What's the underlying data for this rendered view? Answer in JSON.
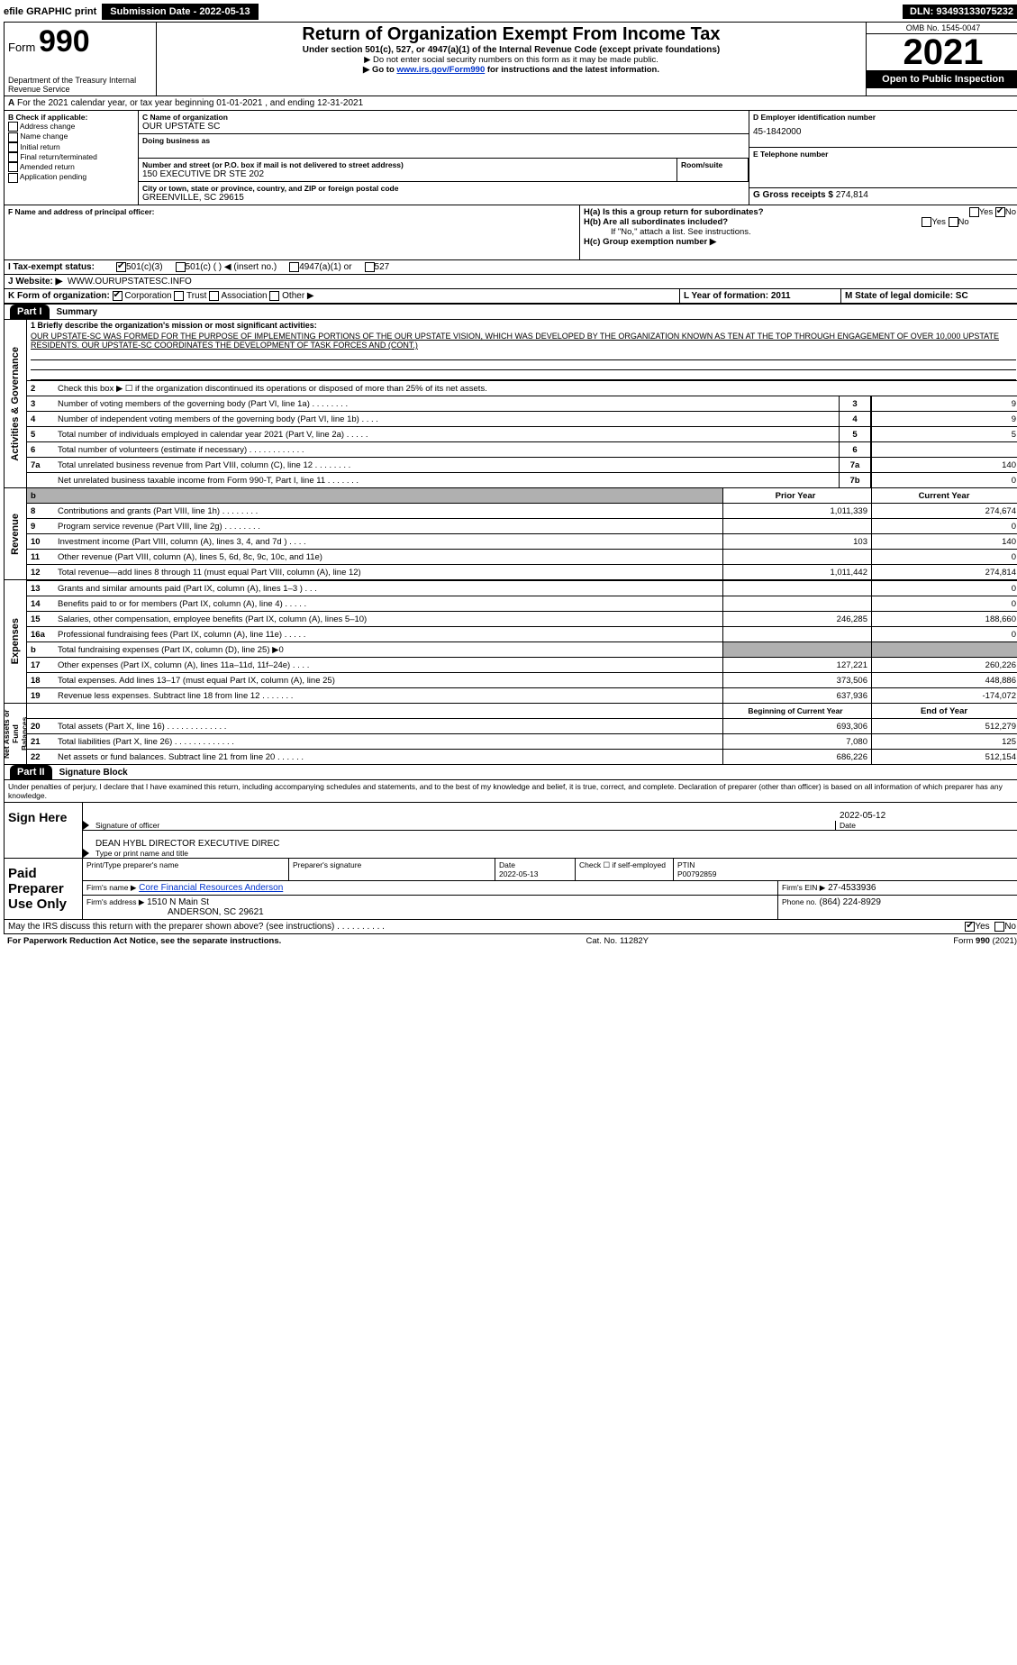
{
  "topbar": {
    "efile": "efile GRAPHIC print",
    "submission": "Submission Date - 2022-05-13",
    "dln": "DLN: 93493133075232"
  },
  "header": {
    "form_prefix": "Form",
    "form_no": "990",
    "dept": "Department of the Treasury Internal Revenue Service",
    "title": "Return of Organization Exempt From Income Tax",
    "subtitle": "Under section 501(c), 527, or 4947(a)(1) of the Internal Revenue Code (except private foundations)",
    "note1": "▶ Do not enter social security numbers on this form as it may be made public.",
    "note2_pre": "▶ Go to ",
    "note2_link": "www.irs.gov/Form990",
    "note2_post": " for instructions and the latest information.",
    "omb": "OMB No. 1545-0047",
    "year": "2021",
    "open": "Open to Public Inspection"
  },
  "A": {
    "text": "For the 2021 calendar year, or tax year beginning 01-01-2021    , and ending 12-31-2021"
  },
  "B": {
    "label": "B Check if applicable:",
    "items": [
      "Address change",
      "Name change",
      "Initial return",
      "Final return/terminated",
      "Amended return",
      "Application pending"
    ]
  },
  "C": {
    "name_label": "C Name of organization",
    "name": "OUR UPSTATE SC",
    "dba_label": "Doing business as",
    "addr_label": "Number and street (or P.O. box if mail is not delivered to street address)",
    "room_label": "Room/suite",
    "addr": "150 EXECUTIVE DR STE 202",
    "city_label": "City or town, state or province, country, and ZIP or foreign postal code",
    "city": "GREENVILLE, SC  29615"
  },
  "D": {
    "label": "D Employer identification number",
    "value": "45-1842000"
  },
  "E": {
    "label": "E Telephone number",
    "value": ""
  },
  "G": {
    "label": "G Gross receipts $",
    "value": "274,814"
  },
  "F": {
    "label": "F  Name and address of principal officer:"
  },
  "H": {
    "a": "H(a)  Is this a group return for subordinates?",
    "b": "H(b)  Are all subordinates included?",
    "b_note": "If \"No,\" attach a list. See instructions.",
    "c": "H(c)  Group exemption number ▶",
    "yes": "Yes",
    "no": "No"
  },
  "I": {
    "label": "I   Tax-exempt status:",
    "opts": [
      "501(c)(3)",
      "501(c) (  ) ◀ (insert no.)",
      "4947(a)(1) or",
      "527"
    ]
  },
  "J": {
    "label": "J   Website: ▶",
    "value": "WWW.OURUPSTATESC.INFO"
  },
  "K": {
    "label": "K Form of organization:",
    "opts": [
      "Corporation",
      "Trust",
      "Association",
      "Other ▶"
    ]
  },
  "L": {
    "label": "L Year of formation: 2011"
  },
  "M": {
    "label": "M State of legal domicile: SC"
  },
  "part1": {
    "label": "Part I",
    "title": "Summary"
  },
  "mission": {
    "label": "1  Briefly describe the organization's mission or most significant activities:",
    "text": "OUR UPSTATE-SC WAS FORMED FOR THE PURPOSE OF IMPLEMENTING PORTIONS OF THE OUR UPSTATE VISION, WHICH WAS DEVELOPED BY THE ORGANIZATION KNOWN AS TEN AT THE TOP THROUGH ENGAGEMENT OF OVER 10,000 UPSTATE RESIDENTS. OUR UPSTATE-SC COORDINATES THE DEVELOPMENT OF TASK FORCES AND (CONT.)"
  },
  "gov_lines": [
    {
      "no": "2",
      "text": "Check this box ▶ ☐  if the organization discontinued its operations or disposed of more than 25% of its net assets.",
      "box": "",
      "val": ""
    },
    {
      "no": "3",
      "text": "Number of voting members of the governing body (Part VI, line 1a)   .    .    .    .    .    .    .    .",
      "box": "3",
      "val": "9"
    },
    {
      "no": "4",
      "text": "Number of independent voting members of the governing body (Part VI, line 1b)    .    .    .    .",
      "box": "4",
      "val": "9"
    },
    {
      "no": "5",
      "text": "Total number of individuals employed in calendar year 2021 (Part V, line 2a)   .    .    .    .    .",
      "box": "5",
      "val": "5"
    },
    {
      "no": "6",
      "text": "Total number of volunteers (estimate if necessary)    .    .    .    .    .    .    .    .    .    .    .    .",
      "box": "6",
      "val": ""
    },
    {
      "no": "7a",
      "text": "Total unrelated business revenue from Part VIII, column (C), line 12   .    .    .    .    .    .    .    .",
      "box": "7a",
      "val": "140"
    },
    {
      "no": "",
      "text": "Net unrelated business taxable income from Form 990-T, Part I, line 11   .    .    .    .    .    .    .",
      "box": "7b",
      "val": "0"
    }
  ],
  "col_hdr": {
    "prior": "Prior Year",
    "current": "Current Year"
  },
  "revenue": [
    {
      "no": "8",
      "text": "Contributions and grants (Part VIII, line 1h)   .    .    .    .    .    .    .    .",
      "p": "1,011,339",
      "c": "274,674"
    },
    {
      "no": "9",
      "text": "Program service revenue (Part VIII, line 2g)   .    .    .    .    .    .    .    .",
      "p": "",
      "c": "0"
    },
    {
      "no": "10",
      "text": "Investment income (Part VIII, column (A), lines 3, 4, and 7d )   .    .    .    .",
      "p": "103",
      "c": "140"
    },
    {
      "no": "11",
      "text": "Other revenue (Part VIII, column (A), lines 5, 6d, 8c, 9c, 10c, and 11e)",
      "p": "",
      "c": "0"
    },
    {
      "no": "12",
      "text": "Total revenue—add lines 8 through 11 (must equal Part VIII, column (A), line 12)",
      "p": "1,011,442",
      "c": "274,814"
    }
  ],
  "expenses": [
    {
      "no": "13",
      "text": "Grants and similar amounts paid (Part IX, column (A), lines 1–3 )   .    .    .",
      "p": "",
      "c": "0"
    },
    {
      "no": "14",
      "text": "Benefits paid to or for members (Part IX, column (A), line 4)   .    .    .    .    .",
      "p": "",
      "c": "0"
    },
    {
      "no": "15",
      "text": "Salaries, other compensation, employee benefits (Part IX, column (A), lines 5–10)",
      "p": "246,285",
      "c": "188,660"
    },
    {
      "no": "16a",
      "text": "Professional fundraising fees (Part IX, column (A), line 11e)   .    .    .    .    .",
      "p": "",
      "c": "0"
    },
    {
      "no": "b",
      "text": "Total fundraising expenses (Part IX, column (D), line 25) ▶0",
      "p": "grey",
      "c": "grey"
    },
    {
      "no": "17",
      "text": "Other expenses (Part IX, column (A), lines 11a–11d, 11f–24e)   .    .    .    .",
      "p": "127,221",
      "c": "260,226"
    },
    {
      "no": "18",
      "text": "Total expenses. Add lines 13–17 (must equal Part IX, column (A), line 25)",
      "p": "373,506",
      "c": "448,886"
    },
    {
      "no": "19",
      "text": "Revenue less expenses. Subtract line 18 from line 12   .    .    .    .    .    .    .",
      "p": "637,936",
      "c": "-174,072"
    }
  ],
  "net_hdr": {
    "begin": "Beginning of Current Year",
    "end": "End of Year"
  },
  "net": [
    {
      "no": "20",
      "text": "Total assets (Part X, line 16)   .    .    .    .    .    .    .    .    .    .    .    .    .",
      "p": "693,306",
      "c": "512,279"
    },
    {
      "no": "21",
      "text": "Total liabilities (Part X, line 26)   .    .    .    .    .    .    .    .    .    .    .    .    .",
      "p": "7,080",
      "c": "125"
    },
    {
      "no": "22",
      "text": "Net assets or fund balances. Subtract line 21 from line 20   .    .    .    .    .    .",
      "p": "686,226",
      "c": "512,154"
    }
  ],
  "part2": {
    "label": "Part II",
    "title": "Signature Block"
  },
  "penalty": "Under penalties of perjury, I declare that I have examined this return, including accompanying schedules and statements, and to the best of my knowledge and belief, it is true, correct, and complete. Declaration of preparer (other than officer) is based on all information of which preparer has any knowledge.",
  "sign": {
    "here": "Sign Here",
    "sig_officer": "Signature of officer",
    "date": "Date",
    "date_val": "2022-05-12",
    "name": "DEAN HYBL DIRECTOR EXECUTIVE DIREC",
    "name_label": "Type or print name and title"
  },
  "paid": {
    "title": "Paid Preparer Use Only",
    "h1": "Print/Type preparer's name",
    "h2": "Preparer's signature",
    "h3": "Date",
    "h3v": "2022-05-13",
    "h4": "Check ☐ if self-employed",
    "h5": "PTIN",
    "h5v": "P00792859",
    "firm_label": "Firm's name    ▶",
    "firm": "Core Financial Resources Anderson",
    "ein_label": "Firm's EIN ▶",
    "ein": "27-4533936",
    "addr_label": "Firm's address ▶",
    "addr1": "1510 N Main St",
    "addr2": "ANDERSON, SC  29621",
    "phone_label": "Phone no.",
    "phone": "(864) 224-8929"
  },
  "discuss": "May the IRS discuss this return with the preparer shown above? (see instructions)   .    .    .    .    .    .    .    .    .    .",
  "footer": {
    "left": "For Paperwork Reduction Act Notice, see the separate instructions.",
    "mid": "Cat. No. 11282Y",
    "right_pre": "Form ",
    "right_b": "990",
    "right_post": " (2021)"
  },
  "vlabels": {
    "gov": "Activities & Governance",
    "rev": "Revenue",
    "exp": "Expenses",
    "net": "Net Assets or Fund Balances"
  }
}
